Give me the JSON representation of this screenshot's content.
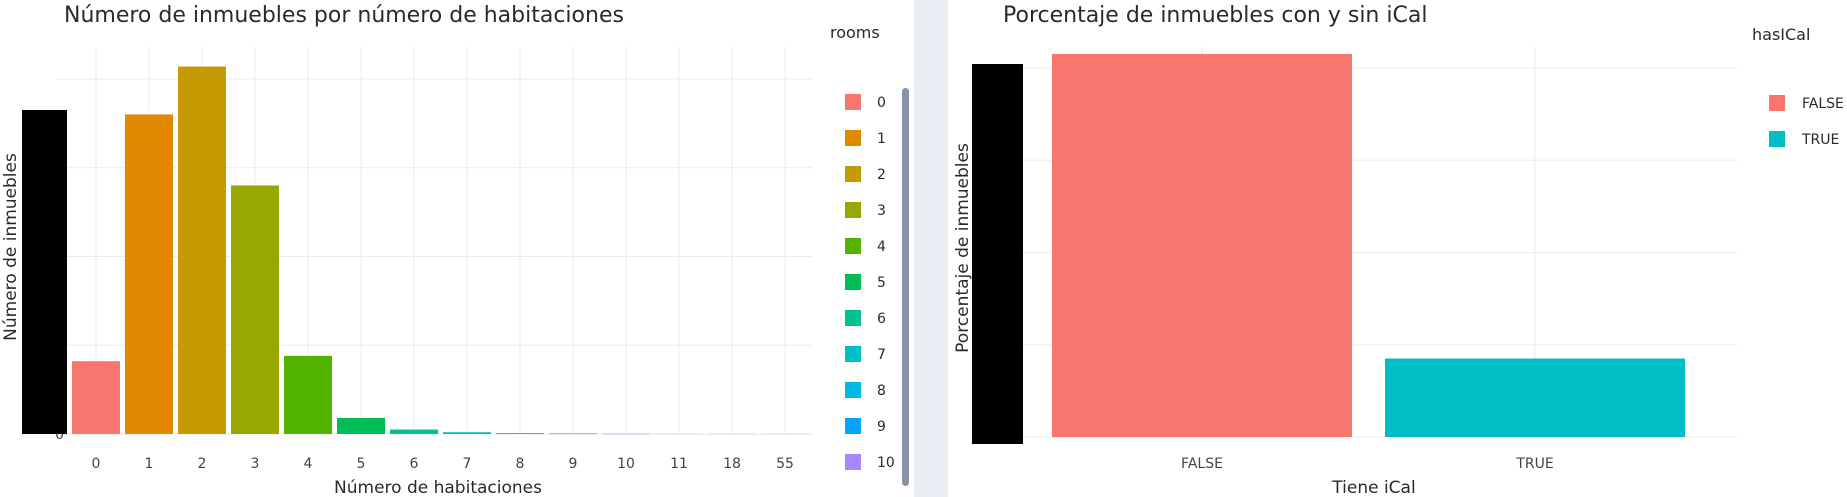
{
  "chart_data": [
    {
      "type": "bar",
      "title": "Número de inmuebles por número de habitaciones",
      "xlabel": "Número de habitaciones",
      "ylabel": "Número de inmuebles",
      "categories": [
        "0",
        "1",
        "2",
        "3",
        "4",
        "5",
        "6",
        "7",
        "8",
        "9",
        "10",
        "11",
        "18",
        "55"
      ],
      "values": [
        4.1,
        18.0,
        20.7,
        14.0,
        4.4,
        0.9,
        0.25,
        0.1,
        0.05,
        0.03,
        0.02,
        0.01,
        0.01,
        0.01
      ],
      "ylim": [
        0,
        21.8
      ],
      "y_tick_labels": [
        "0"
      ],
      "colors": [
        "#F8766D",
        "#E38900",
        "#C49A00",
        "#99A800",
        "#53B400",
        "#00BC56",
        "#00C094",
        "#00BFC4",
        "#00B6EB",
        "#06A4FF",
        "#A58AFF"
      ],
      "grid": true,
      "legend": {
        "title": "rooms",
        "position": "right",
        "entries": [
          "0",
          "1",
          "2",
          "3",
          "4",
          "5",
          "6",
          "7",
          "8",
          "9",
          "10"
        ],
        "colors": [
          "#F8766D",
          "#E38900",
          "#C49A00",
          "#99A800",
          "#53B400",
          "#00BC56",
          "#00C094",
          "#00BFC4",
          "#00B6EB",
          "#06A4FF",
          "#A58AFF"
        ]
      }
    },
    {
      "type": "bar",
      "title": "Porcentaje de inmuebles con y sin iCal",
      "xlabel": "Tiene iCal",
      "ylabel": "Porcentaje de inmuebles",
      "categories": [
        "FALSE",
        "TRUE"
      ],
      "values": [
        83,
        17
      ],
      "ylim": [
        0,
        84.5
      ],
      "colors": [
        "#F8766D",
        "#00BFC4"
      ],
      "grid": true,
      "legend": {
        "title": "hasICal",
        "position": "right",
        "entries": [
          "FALSE",
          "TRUE"
        ],
        "colors": [
          "#F8766D",
          "#00BFC4"
        ]
      }
    }
  ]
}
